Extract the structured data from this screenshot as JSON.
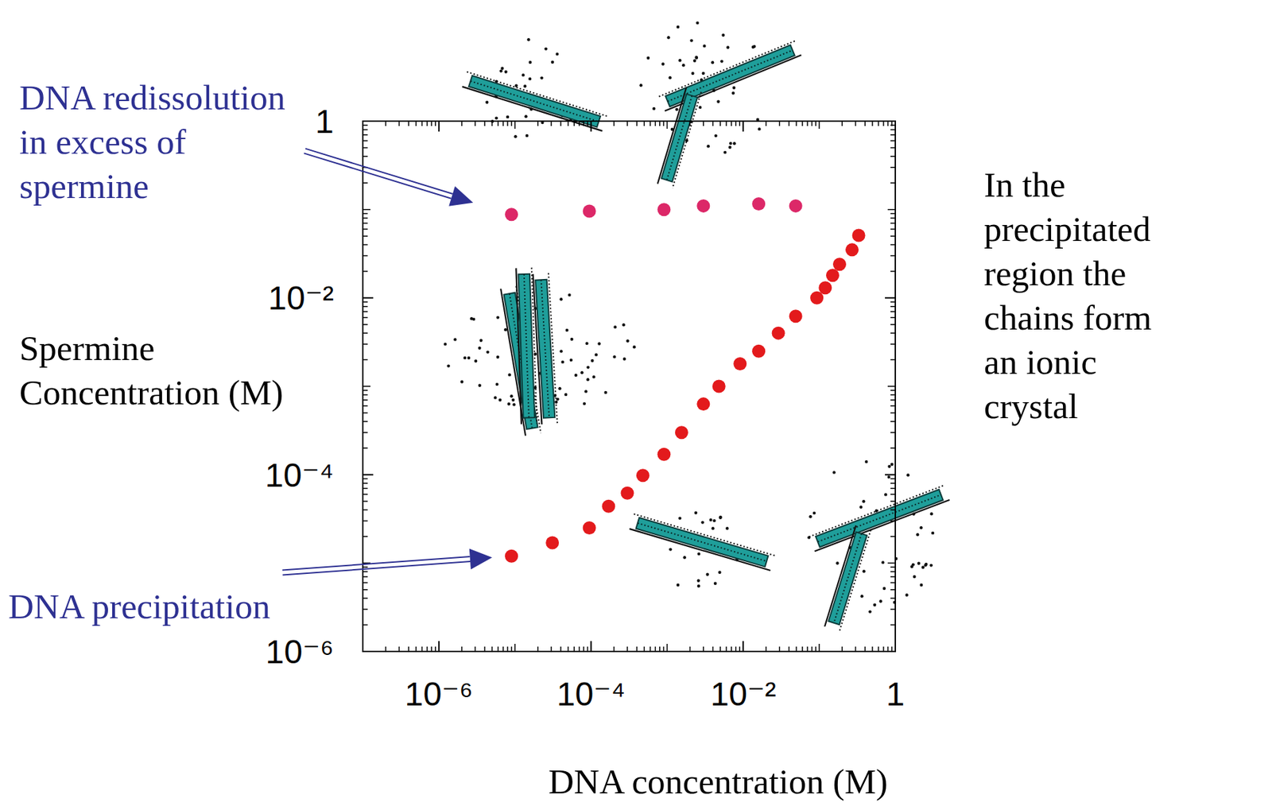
{
  "chart_data": {
    "type": "scatter",
    "xlabel": "DNA concentration (M)",
    "ylabel": "Spermine Concentration (M)",
    "annotation": "In the precipitated region the chains form an ionic crystal",
    "log": true,
    "xlim": [
      1e-07,
      1
    ],
    "ylim": [
      1e-06,
      1
    ],
    "xticks": [
      {
        "value": 1e-06,
        "label": "10⁻⁶"
      },
      {
        "value": 0.0001,
        "label": "10⁻⁴"
      },
      {
        "value": 0.01,
        "label": "10⁻²"
      },
      1
    ],
    "yticks": [
      {
        "value": 1e-06,
        "label": "10⁻⁶"
      },
      {
        "value": 0.0001,
        "label": "10⁻⁴"
      },
      {
        "value": 0.01,
        "label": "10⁻²"
      },
      1
    ],
    "series": [
      {
        "name": "DNA precipitation",
        "color": "#e31a1c",
        "marker": "circle",
        "x": [
          9e-06,
          3.1e-05,
          9.5e-05,
          0.00017,
          0.0003,
          0.00048,
          0.00091,
          0.00155,
          0.003,
          0.0048,
          0.0091,
          0.016,
          0.029,
          0.049,
          0.093,
          0.12,
          0.15,
          0.185,
          0.27,
          0.33
        ],
        "values": [
          1.2e-05,
          1.7e-05,
          2.5e-05,
          4.4e-05,
          6.2e-05,
          9.8e-05,
          0.00017,
          0.0003,
          0.00063,
          0.001,
          0.0018,
          0.0025,
          0.004,
          0.0062,
          0.01,
          0.013,
          0.018,
          0.024,
          0.035,
          0.051
        ]
      },
      {
        "name": "DNA redissolution in excess of spermine",
        "color": "#dc2868",
        "marker": "circle",
        "x": [
          9e-06,
          9.5e-05,
          0.00091,
          0.003,
          0.016,
          0.049
        ],
        "values": [
          0.088,
          0.096,
          0.1,
          0.11,
          0.116,
          0.11
        ]
      }
    ]
  }
}
